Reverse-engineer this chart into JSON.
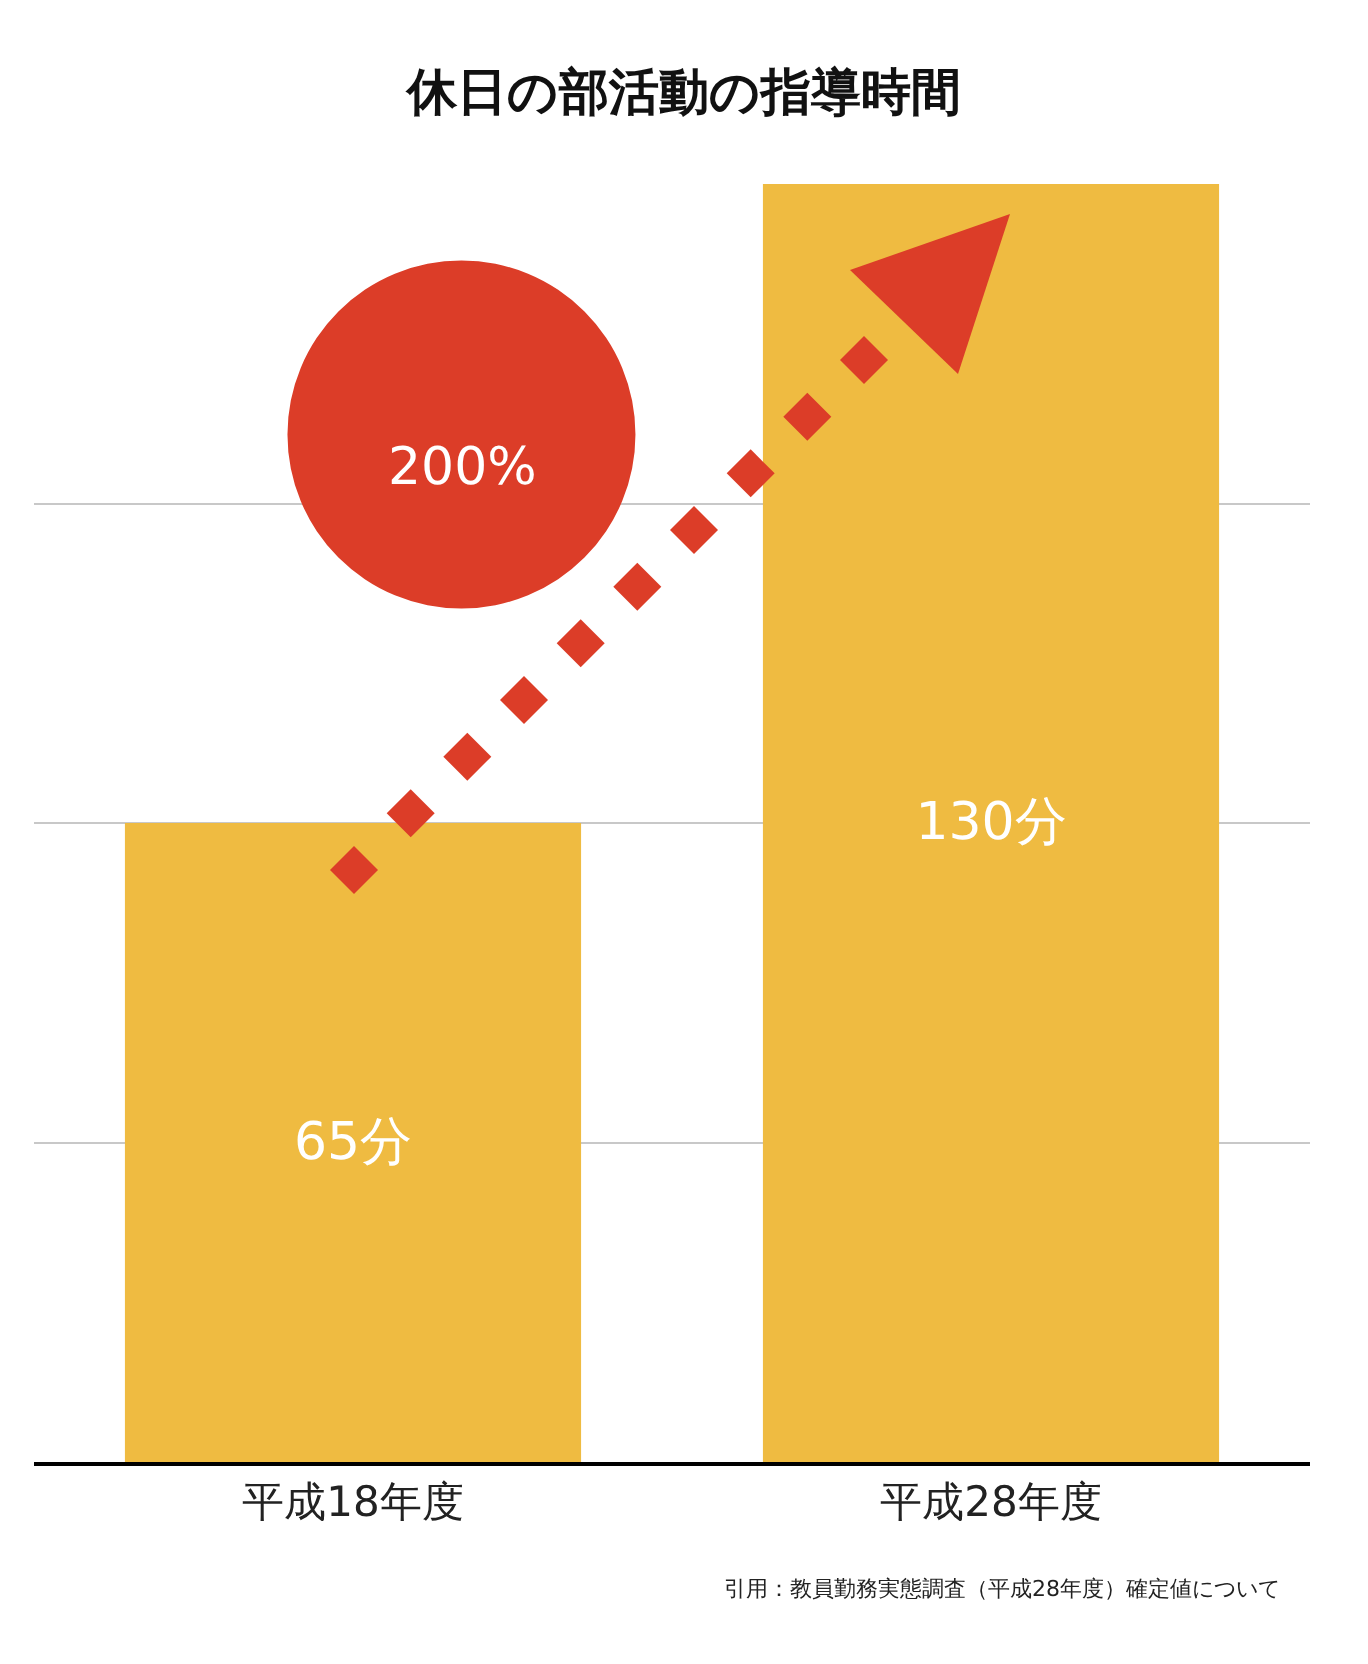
{
  "chart_data": {
    "type": "bar",
    "title": "休日の部活動の指導時間",
    "categories": [
      "平成18年度",
      "平成28年度"
    ],
    "values": [
      65,
      130
    ],
    "color": "#efbb41",
    "value_labels": [
      "65分",
      "130分"
    ],
    "ylim": [
      0,
      130
    ],
    "yticks": [
      {
        "value": 0,
        "label": null
      },
      {
        "value": 32.5,
        "label": null
      },
      {
        "value": 65,
        "label": null
      },
      {
        "value": 97.5,
        "label": null
      }
    ],
    "grid": "y",
    "tick_labels": "x",
    "annotations": [
      "200%",
      "引用：教員勤務実態調査（平成28年度）確定値について"
    ]
  }
}
